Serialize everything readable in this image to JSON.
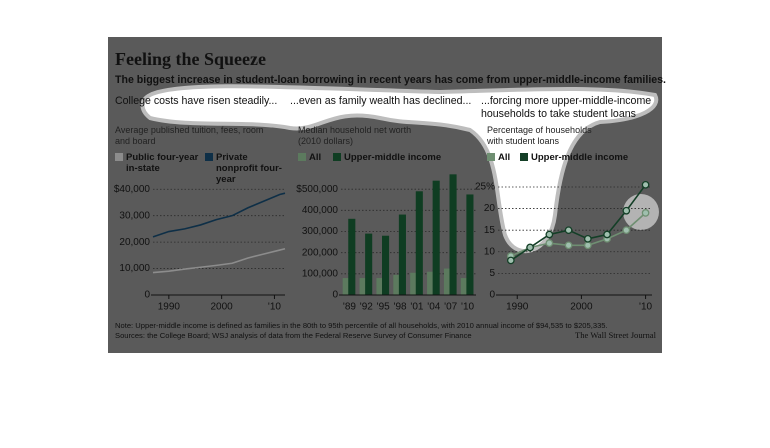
{
  "header": {
    "title": "Feeling the Squeeze",
    "subtitle": "The biggest increase in student-loan borrowing in recent years has come from upper-middle-income families."
  },
  "chart_data": [
    {
      "type": "line",
      "heading": "College costs have risen steadily...",
      "axis_label": "Average published tuition, fees, room and board",
      "x": [
        1987,
        1990,
        1993,
        1996,
        1999,
        2002,
        2005,
        2008,
        2011,
        2012
      ],
      "series": [
        {
          "name": "Public four-year in-state",
          "color": "#8c8c8c",
          "values": [
            8500,
            9000,
            9800,
            10500,
            11200,
            12000,
            14000,
            15500,
            17000,
            17500
          ]
        },
        {
          "name": "Private nonprofit four-year",
          "color": "#0e2f47",
          "values": [
            22000,
            24000,
            25000,
            26500,
            28500,
            30000,
            33000,
            35500,
            38000,
            38500
          ]
        }
      ],
      "xlim": [
        1987,
        2012
      ],
      "xticks": [
        1990,
        2000,
        {
          "value": 2010,
          "label": "'10"
        }
      ],
      "ylim": [
        0,
        45000
      ],
      "yticks": [
        {
          "value": 40000,
          "label": "$40,000"
        },
        {
          "value": 30000,
          "label": "30,000"
        },
        {
          "value": 20000,
          "label": "20,000"
        },
        {
          "value": 10000,
          "label": "10,000"
        },
        0
      ],
      "grid": true
    },
    {
      "type": "bar",
      "heading": "...even as family wealth has declined...",
      "axis_label": "Median household net worth (2010 dollars)",
      "categories": [
        "'89",
        "'92",
        "'95",
        "'98",
        "'01",
        "'04",
        "'07",
        "'10"
      ],
      "series": [
        {
          "name": "All",
          "color": "#5c7a5e",
          "values": [
            80000,
            80000,
            80000,
            95000,
            105000,
            110000,
            125000,
            80000
          ]
        },
        {
          "name": "Upper-middle income",
          "color": "#0f3d22",
          "values": [
            360000,
            290000,
            280000,
            380000,
            490000,
            540000,
            570000,
            475000
          ]
        }
      ],
      "ylim": [
        0,
        600000
      ],
      "yticks": [
        {
          "value": 500000,
          "label": "$500,000"
        },
        {
          "value": 400000,
          "label": "400,000"
        },
        {
          "value": 300000,
          "label": "300,000"
        },
        {
          "value": 200000,
          "label": "200,000"
        },
        {
          "value": 100000,
          "label": "100,000"
        },
        0
      ],
      "grid": true
    },
    {
      "type": "line",
      "heading": "...forcing more upper-middle-income households to take student loans",
      "axis_label": "Percentage of households with student loans",
      "x": [
        1989,
        1992,
        1995,
        1998,
        2001,
        2004,
        2007,
        2010
      ],
      "series": [
        {
          "name": "All",
          "color": "#6f8f72",
          "values": [
            9,
            11,
            12,
            11.5,
            11.5,
            13,
            15,
            19
          ]
        },
        {
          "name": "Upper-middle income",
          "color": "#143f27",
          "values": [
            8,
            11,
            14,
            15,
            13,
            14,
            19.5,
            25.5
          ]
        }
      ],
      "markers": true,
      "xlim": [
        1987,
        2011
      ],
      "xticks": [
        1990,
        2000,
        {
          "value": 2010,
          "label": "'10"
        }
      ],
      "ylim": [
        0,
        28
      ],
      "yticks": [
        {
          "value": 25,
          "label": "25%"
        },
        20,
        15,
        10,
        5,
        0
      ],
      "grid": true
    }
  ],
  "footer": {
    "note": "Note: Upper-middle income is defined as families in the 80th to 95th percentile of all households, with 2010 annual income of $94,535 to $205,335.",
    "source": "Sources: the College Board; WSJ analysis of data from the Federal Reserve Survey of Consumer Finance",
    "credit": "The Wall Street Journal"
  }
}
